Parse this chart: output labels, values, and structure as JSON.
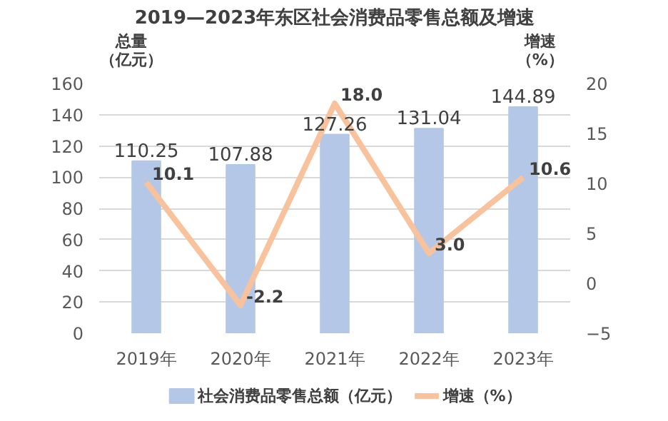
{
  "chart_data": {
    "type": "bar",
    "title": "2019—2023年东区社会消费品零售总额及增速",
    "ylabel": "总量（亿元）",
    "y2label": "增速（%）",
    "categories": [
      "2019年",
      "2020年",
      "2021年",
      "2022年",
      "2023年"
    ],
    "series": [
      {
        "name": "社会消费品零售总额（亿元）",
        "color": "#b4c7e7",
        "values": [
          110.25,
          107.88,
          127.26,
          131.04,
          144.89
        ]
      },
      {
        "name": "增速（%）",
        "type": "line",
        "axis": "y2",
        "color": "#f8c29c",
        "values": [
          10.1,
          -2.2,
          18.0,
          3.0,
          10.6
        ],
        "value_labels": [
          "10.1",
          "-2.2",
          "18.0",
          "3.0",
          "10.6"
        ]
      }
    ],
    "data_labels": true,
    "ylim": [
      0,
      160
    ],
    "yticks": [
      0,
      20,
      40,
      60,
      80,
      100,
      120,
      140,
      160
    ],
    "y2lim": [
      -5,
      20
    ],
    "y2ticks": [
      -5,
      0,
      5,
      10,
      15,
      20
    ],
    "grid": "y",
    "legend": "bottom",
    "marker": "none",
    "line_style": "solid"
  }
}
